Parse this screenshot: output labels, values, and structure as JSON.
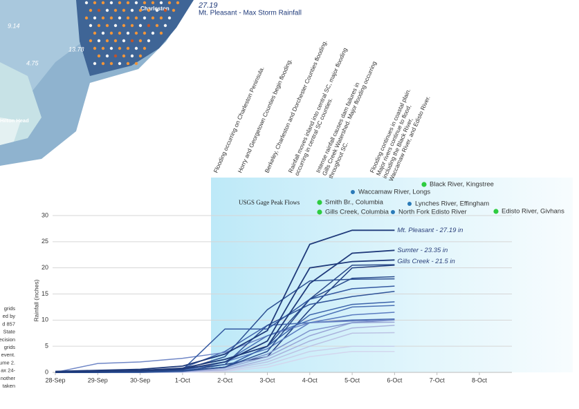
{
  "chart_data": {
    "type": "line",
    "map_labels": {
      "max_value": "27.19",
      "max_caption": "Mt. Pleasant - Max Storm Rainfall",
      "city1": "Charleston",
      "city2": "Hilton Head",
      "v1": "9.14",
      "v2": "13.78",
      "v3": "4.75"
    },
    "side_text": [
      "grids",
      "ed by",
      "d 857",
      "State",
      "ecision",
      "grids",
      "event.",
      "ume 2.",
      "ax 24-",
      "nother",
      "taken"
    ],
    "annotations": [
      [
        "Flooding occurring on Charleston Peninsula."
      ],
      [
        "Horry and Georgetown Counties begin flooding."
      ],
      [
        "Berkeley, Charleston and Dorchester Counties flooding."
      ],
      [
        "Rainfall moves inland into central SC, major flooding",
        "occurring in central SC counties."
      ],
      [
        "Intense rainfall causes dam failures in",
        "Gills Creek Watershed. Major flooding occurring",
        "throughout SC."
      ],
      [
        "Flooding continues in coastal plain.",
        "Major rivers continue to flood,",
        "including the Black River,",
        "Waccamaw River, and Edisto River."
      ]
    ],
    "gage_peaks": {
      "title": "USGS Gage Peak Flows",
      "sites": [
        {
          "label": "Smith Br., Columbia",
          "color": "#2ecc40"
        },
        {
          "label": "Gills Creek, Columbia",
          "color": "#2ecc40"
        },
        {
          "label": "Waccamaw River, Longs",
          "color": "#2a7ab8"
        },
        {
          "label": "North Fork Edisto River",
          "color": "#2a7ab8"
        },
        {
          "label": "Lynches River, Effingham",
          "color": "#2a7ab8"
        },
        {
          "label": "Black River, Kingstree",
          "color": "#2ecc40"
        },
        {
          "label": "Edisto River, Givhans",
          "color": "#2ecc40"
        }
      ]
    },
    "y_label": "Rainfall (inches)",
    "categories": [
      "28-Sep",
      "29-Sep",
      "30-Sep",
      "1-Oct",
      "2-Oct",
      "3-Oct",
      "4-Oct",
      "5-Oct",
      "6-Oct",
      "7-Oct",
      "8-Oct"
    ],
    "ylim": [
      0,
      30
    ],
    "yticks": [
      0,
      5,
      10,
      15,
      20,
      25,
      30
    ],
    "grid": true,
    "series": [
      {
        "name": "Mt. Pleasant - 27.19 in",
        "color": "#1f3a7a",
        "values": [
          0.2,
          0.4,
          0.6,
          1.2,
          3.5,
          8,
          24.5,
          27.19,
          27.19,
          null,
          null
        ]
      },
      {
        "name": "Sumter - 23.35 in",
        "color": "#1f3a7a",
        "values": [
          0,
          0.2,
          0.4,
          0.8,
          2.5,
          5,
          17,
          22.8,
          23.35,
          null,
          null
        ]
      },
      {
        "name": "Gills Creek - 21.5 in",
        "color": "#1f3a7a",
        "values": [
          0,
          0.2,
          0.3,
          0.6,
          2,
          6,
          20,
          21.2,
          21.5,
          null,
          null
        ]
      },
      {
        "color": "#274a8c",
        "values": [
          0,
          0,
          0.1,
          0.3,
          1,
          4,
          14,
          18,
          18.3,
          null,
          null
        ]
      },
      {
        "color": "#3358a0",
        "values": [
          0,
          0,
          0.1,
          0.5,
          8.3,
          8.3,
          14,
          16,
          16.5,
          null,
          null
        ]
      },
      {
        "color": "#2c4f92",
        "values": [
          0,
          0.1,
          0.2,
          0.5,
          3,
          12,
          17.5,
          17.8,
          17.9,
          null,
          null
        ]
      },
      {
        "color": "#3b63aa",
        "values": [
          0,
          0,
          0.1,
          0.2,
          1,
          5,
          11,
          13,
          13.5,
          null,
          null
        ]
      },
      {
        "color": "#4a70b5",
        "values": [
          0,
          0,
          0.1,
          0.3,
          2,
          7,
          10,
          12.5,
          12.8,
          null,
          null
        ]
      },
      {
        "color": "#2f5398",
        "values": [
          0,
          0,
          0,
          0.2,
          1.5,
          9,
          13,
          14.5,
          15.5,
          null,
          null
        ]
      },
      {
        "color": "#5a7cc0",
        "values": [
          0,
          0,
          0.1,
          0.4,
          2,
          4.5,
          9.5,
          11,
          11.5,
          null,
          null
        ]
      },
      {
        "color": "#7f93cc",
        "values": [
          0,
          0,
          0,
          0.2,
          1,
          3.5,
          8,
          9.5,
          10,
          null,
          null
        ]
      },
      {
        "color": "#9aa6d6",
        "values": [
          0,
          0,
          0,
          0.1,
          0.8,
          3,
          7,
          9.5,
          9.6,
          null,
          null
        ]
      },
      {
        "color": "#a9b2dc",
        "values": [
          0,
          0,
          0,
          0.1,
          0.5,
          2.5,
          6,
          8.5,
          9,
          null,
          null
        ]
      },
      {
        "color": "#bcc3e4",
        "values": [
          0,
          0,
          0,
          0.1,
          0.5,
          2,
          5,
          7.5,
          7.6,
          null,
          null
        ]
      },
      {
        "color": "#c9cfea",
        "values": [
          0,
          0,
          0,
          0.1,
          0.3,
          1.5,
          4,
          5,
          5,
          null,
          null
        ]
      },
      {
        "color": "#d3d7ee",
        "values": [
          0,
          0,
          0,
          0,
          0.2,
          1,
          3,
          4,
          4,
          null,
          null
        ]
      },
      {
        "color": "#6f86c6",
        "values": [
          0,
          1.7,
          2,
          2.7,
          3.8,
          7,
          9.5,
          9.8,
          10,
          null,
          null
        ]
      },
      {
        "color": "#4467ae",
        "values": [
          0,
          0,
          0.2,
          0.8,
          4,
          9,
          9.5,
          10,
          10.2,
          null,
          null
        ]
      },
      {
        "color": "#223f80",
        "values": [
          0.1,
          0.2,
          0.3,
          0.6,
          1.5,
          3,
          12,
          20,
          20.5,
          null,
          null
        ]
      },
      {
        "color": "#2a4a8a",
        "values": [
          0,
          0,
          0.1,
          0.2,
          1,
          5,
          14,
          20.5,
          20.6,
          null,
          null
        ]
      }
    ]
  }
}
